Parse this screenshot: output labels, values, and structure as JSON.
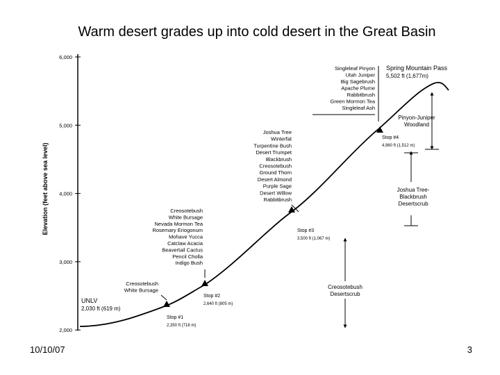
{
  "title": "Warm desert grades up into cold desert in the Great Basin",
  "diagram": {
    "y_axis_label": "Elevation (feet above sea level)",
    "y_ticks": [
      "6,000",
      "5,000",
      "4,000",
      "3,000",
      "2,000"
    ],
    "plant_lists": [
      [
        "Singleleaf Pinyon",
        "Utah Juniper",
        "Big Sagebrush",
        "Apache Plume",
        "Rabbitbrush",
        "Green Mormon Tea",
        "Singleleaf Ash"
      ],
      [
        "Joshua Tree",
        "Winterfat",
        "Turpentine Bush",
        "Desert Trumpet",
        "Blackbrush",
        "Creosotebush",
        "Ground Thorn",
        "Desert Almond",
        "Purple Sage",
        "Desert Willow",
        "Rabbitbrush"
      ],
      [
        "Creosotebush",
        "White Bursage",
        "Nevada Mormon Tea",
        "Rosemary Eriogonum",
        "Mohave Yucca",
        "Catclaw Acacia",
        "Beavertail Cactus",
        "Pencil Cholla",
        "Indigo Bush"
      ],
      [
        "Creosotebush",
        "White Bursage"
      ]
    ],
    "places": [
      [
        "Spring Mountain Pass",
        "5,502 ft (1,677m)"
      ],
      [
        "Stop #4",
        "4,960 ft (1,512 m)"
      ],
      [
        "Stop #3",
        "3,500 ft (1,067 m)"
      ],
      [
        "Stop #2",
        "2,640 ft (805 m)"
      ],
      [
        "Stop #1",
        "2,350 ft (716 m)"
      ],
      [
        "UNLV",
        "2,030 ft (619 m)"
      ]
    ],
    "zones": [
      [
        "Pinyon-Juniper",
        "Woodland"
      ],
      [
        "Joshua Tree-",
        "Blackbrush",
        "Desertscrub"
      ],
      [
        "Creosotebush",
        "Desertscrub"
      ]
    ]
  },
  "footer": {
    "date": "10/10/07",
    "page": "3"
  }
}
